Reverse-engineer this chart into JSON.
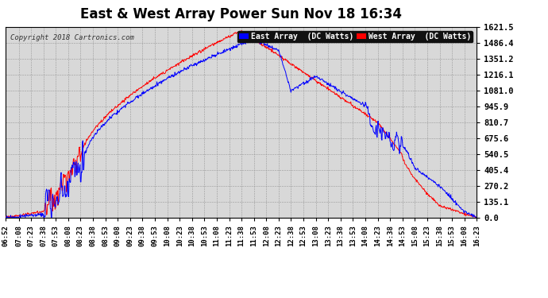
{
  "title": "East & West Array Power Sun Nov 18 16:34",
  "copyright": "Copyright 2018 Cartronics.com",
  "legend_east": "East Array  (DC Watts)",
  "legend_west": "West Array  (DC Watts)",
  "east_color": "#0000ff",
  "west_color": "#ff0000",
  "bg_color": "#ffffff",
  "plot_bg_color": "#d8d8d8",
  "grid_color": "#aaaaaa",
  "y_ticks": [
    0.0,
    135.1,
    270.2,
    405.4,
    540.5,
    675.6,
    810.7,
    945.9,
    1081.0,
    1216.1,
    1351.2,
    1486.4,
    1621.5
  ],
  "ylim": [
    0,
    1621.5
  ],
  "x_labels": [
    "06:52",
    "07:08",
    "07:23",
    "07:38",
    "07:53",
    "08:08",
    "08:23",
    "08:38",
    "08:53",
    "09:08",
    "09:23",
    "09:38",
    "09:53",
    "10:08",
    "10:23",
    "10:38",
    "10:53",
    "11:08",
    "11:23",
    "11:38",
    "11:53",
    "12:08",
    "12:23",
    "12:38",
    "12:53",
    "13:08",
    "13:23",
    "13:38",
    "13:53",
    "14:08",
    "14:23",
    "14:38",
    "14:53",
    "15:08",
    "15:23",
    "15:38",
    "15:53",
    "16:08",
    "16:23"
  ],
  "title_fontsize": 12,
  "label_fontsize": 6.5,
  "copyright_fontsize": 6.5,
  "ytick_fontsize": 7.5,
  "legend_fontsize": 7
}
